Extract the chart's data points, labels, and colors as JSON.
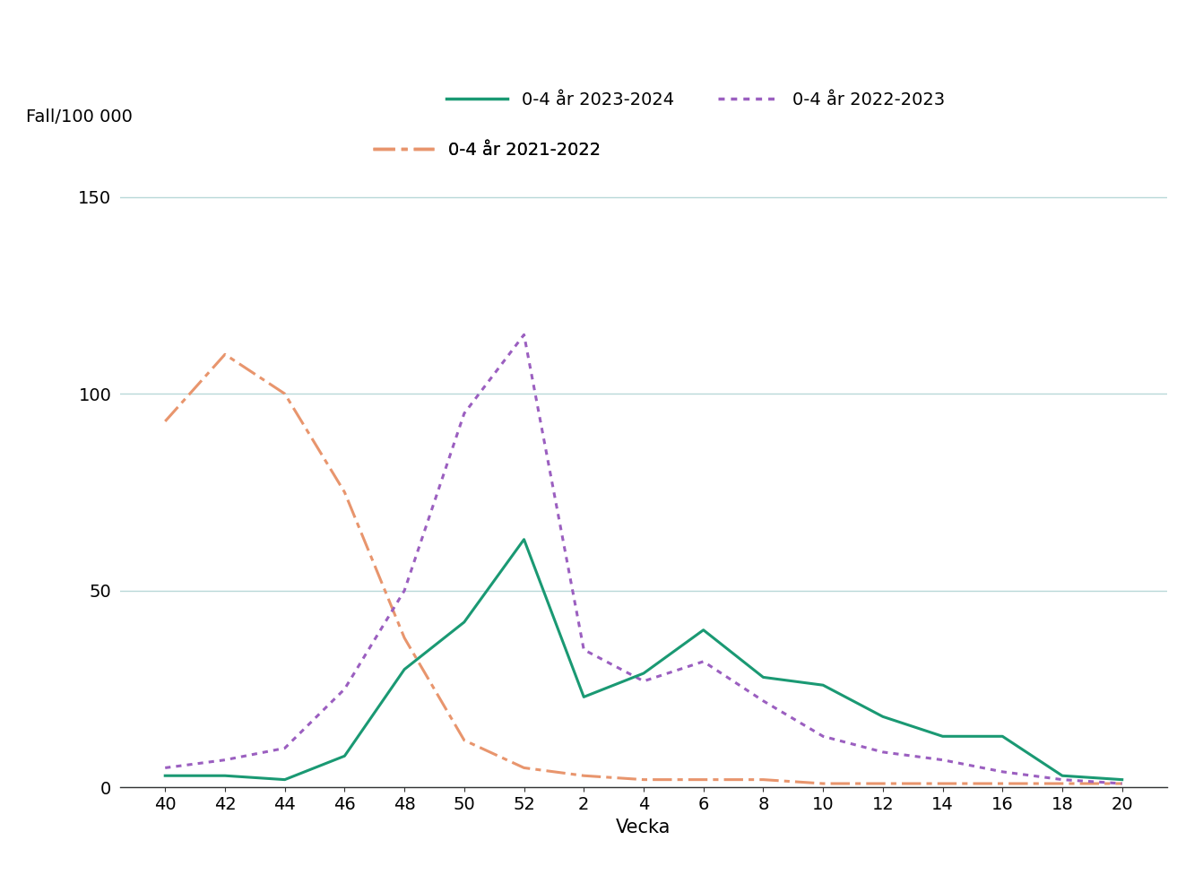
{
  "x_labels": [
    "40",
    "42",
    "44",
    "46",
    "48",
    "50",
    "52",
    "2",
    "4",
    "6",
    "8",
    "10",
    "12",
    "14",
    "16",
    "18",
    "20"
  ],
  "x_positions": [
    40,
    42,
    44,
    46,
    48,
    50,
    52,
    54,
    56,
    58,
    60,
    62,
    64,
    66,
    68,
    70,
    72
  ],
  "series_2023_2024": {
    "label": "0-4 år 2023-2024",
    "color": "#1a9973",
    "linewidth": 2.2,
    "x": [
      40,
      42,
      44,
      46,
      48,
      50,
      52,
      54,
      56,
      58,
      60,
      62,
      64,
      66,
      68,
      70,
      72
    ],
    "y": [
      3,
      3,
      2,
      8,
      30,
      42,
      63,
      23,
      29,
      40,
      28,
      26,
      18,
      13,
      13,
      3,
      2
    ]
  },
  "series_2022_2023": {
    "label": "0-4 år 2022-2023",
    "color": "#9b5fc0",
    "linewidth": 2.2,
    "x": [
      40,
      42,
      44,
      46,
      48,
      50,
      52,
      54,
      56,
      58,
      60,
      62,
      64,
      66,
      68,
      70,
      72
    ],
    "y": [
      5,
      7,
      10,
      25,
      50,
      95,
      115,
      35,
      27,
      32,
      22,
      13,
      9,
      7,
      4,
      2,
      1
    ]
  },
  "series_2021_2022": {
    "label": "0-4 år 2021-2022",
    "color": "#e8956d",
    "linewidth": 2.2,
    "x": [
      40,
      42,
      44,
      46,
      48,
      50,
      52,
      54,
      56,
      58,
      60,
      62,
      64,
      66,
      68,
      70,
      72
    ],
    "y": [
      93,
      110,
      100,
      75,
      38,
      12,
      5,
      3,
      2,
      2,
      2,
      1,
      1,
      1,
      1,
      1,
      1
    ]
  },
  "ylabel": "Fall/100 000",
  "xlabel": "Vecka",
  "ylim": [
    0,
    160
  ],
  "yticks": [
    0,
    50,
    100,
    150
  ],
  "background_color": "#ffffff",
  "grid_color": "#b8d8d8",
  "axis_fontsize": 14,
  "legend_fontsize": 14
}
